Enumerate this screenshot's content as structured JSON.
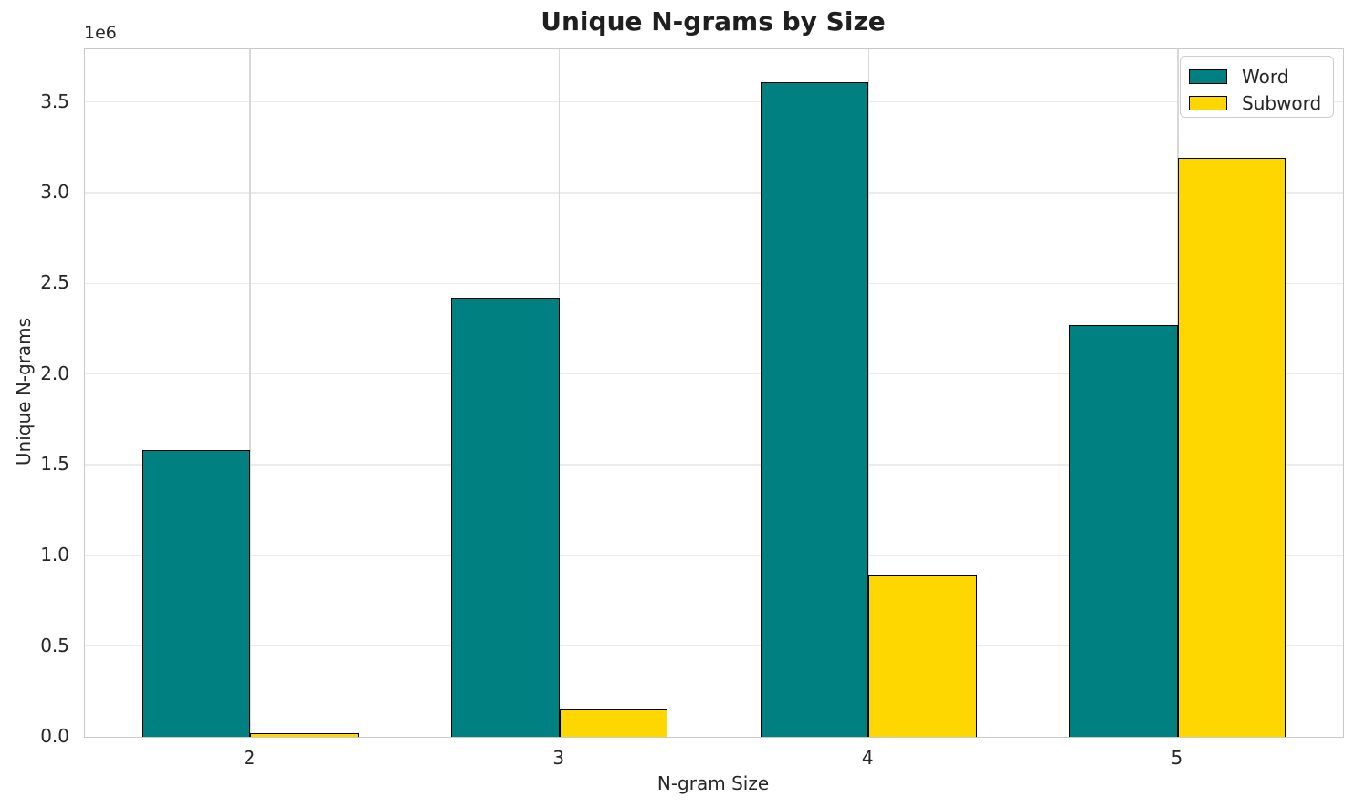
{
  "title": "Unique N-grams by Size",
  "chart_data": {
    "type": "bar",
    "title": "Unique N-grams by Size",
    "xlabel": "N-gram Size",
    "ylabel": "Unique N-grams",
    "y_offset_text": "1e6",
    "categories": [
      "2",
      "3",
      "4",
      "5"
    ],
    "series": [
      {
        "name": "Word",
        "color": "#008080",
        "values": [
          1580000,
          2420000,
          3610000,
          2270000
        ]
      },
      {
        "name": "Subword",
        "color": "#ffd700",
        "values": [
          20000,
          150000,
          890000,
          3190000
        ]
      }
    ],
    "ylim": [
      0,
      3790000
    ],
    "yticks": [
      0,
      500000,
      1000000,
      1500000,
      2000000,
      2500000,
      3000000,
      3500000
    ],
    "ytick_labels": [
      "0.0",
      "0.5",
      "1.0",
      "1.5",
      "2.0",
      "2.5",
      "3.0",
      "3.5"
    ],
    "xlim": [
      -0.535,
      3.535
    ],
    "bar_width": 0.35,
    "bar_edge_color": "#000000",
    "grid": true,
    "legend": {
      "position": "upper right",
      "items": [
        "Word",
        "Subword"
      ]
    }
  }
}
